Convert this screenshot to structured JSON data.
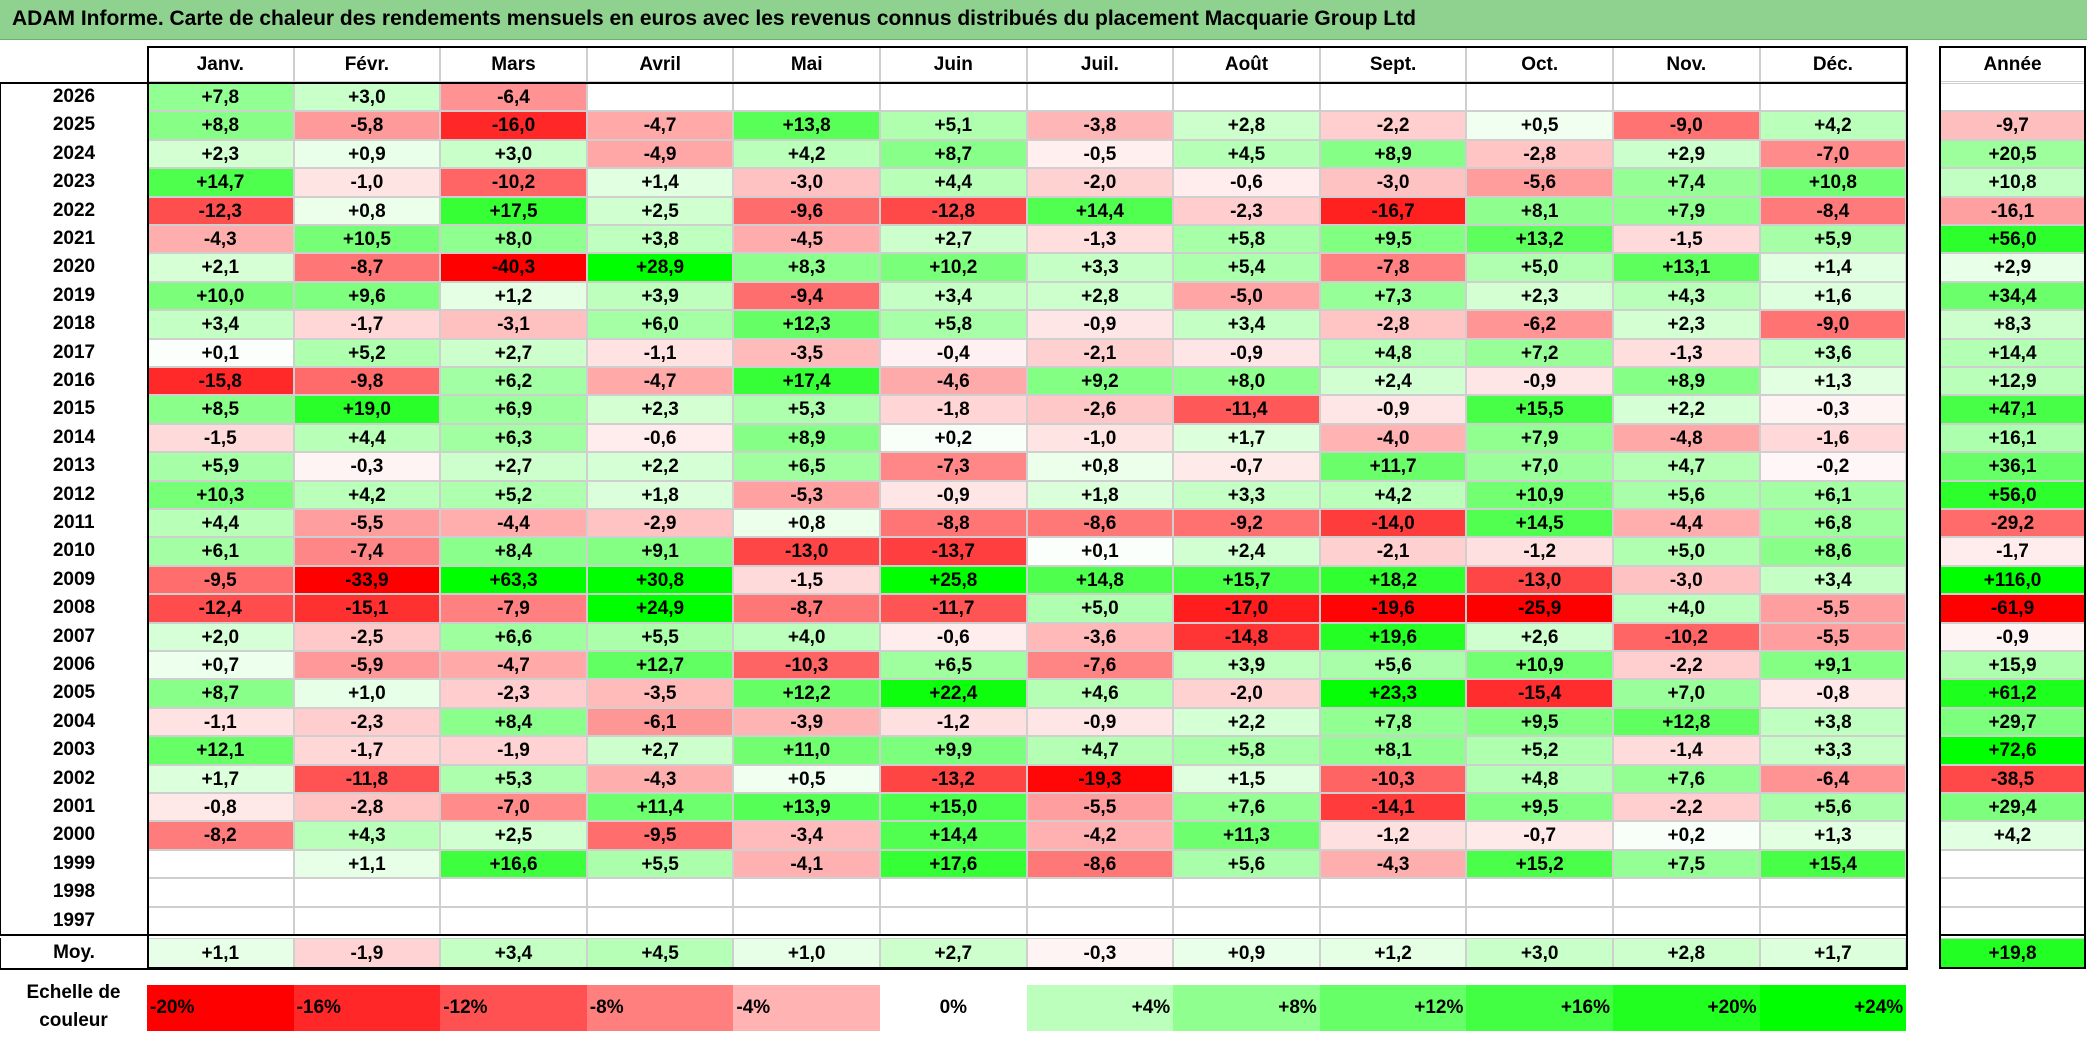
{
  "title": "ADAM Informe. Carte de chaleur des rendements mensuels en euros avec les revenus connus distribués du placement Macquarie Group Ltd",
  "chart_data": {
    "type": "heatmap",
    "title": "ADAM Informe. Carte de chaleur des rendements mensuels en euros avec les revenus connus distribués du placement Macquarie Group Ltd",
    "months": [
      "Janv.",
      "Févr.",
      "Mars",
      "Avril",
      "Mai",
      "Juin",
      "Juil.",
      "Août",
      "Sept.",
      "Oct.",
      "Nov.",
      "Déc."
    ],
    "year_header": "Année",
    "rows": [
      {
        "year": "2026",
        "values": [
          "+7,8",
          "+3,0",
          "-6,4",
          "",
          "",
          "",
          "",
          "",
          "",
          "",
          "",
          ""
        ],
        "annual": ""
      },
      {
        "year": "2025",
        "values": [
          "+8,8",
          "-5,8",
          "-16,0",
          "-4,7",
          "+13,8",
          "+5,1",
          "-3,8",
          "+2,8",
          "-2,2",
          "+0,5",
          "-9,0",
          "+4,2"
        ],
        "annual": "-9,7"
      },
      {
        "year": "2024",
        "values": [
          "+2,3",
          "+0,9",
          "+3,0",
          "-4,9",
          "+4,2",
          "+8,7",
          "-0,5",
          "+4,5",
          "+8,9",
          "-2,8",
          "+2,9",
          "-7,0"
        ],
        "annual": "+20,5"
      },
      {
        "year": "2023",
        "values": [
          "+14,7",
          "-1,0",
          "-10,2",
          "+1,4",
          "-3,0",
          "+4,4",
          "-2,0",
          "-0,6",
          "-3,0",
          "-5,6",
          "+7,4",
          "+10,8"
        ],
        "annual": "+10,8"
      },
      {
        "year": "2022",
        "values": [
          "-12,3",
          "+0,8",
          "+17,5",
          "+2,5",
          "-9,6",
          "-12,8",
          "+14,4",
          "-2,3",
          "-16,7",
          "+8,1",
          "+7,9",
          "-8,4"
        ],
        "annual": "-16,1"
      },
      {
        "year": "2021",
        "values": [
          "-4,3",
          "+10,5",
          "+8,0",
          "+3,8",
          "-4,5",
          "+2,7",
          "-1,3",
          "+5,8",
          "+9,5",
          "+13,2",
          "-1,5",
          "+5,9"
        ],
        "annual": "+56,0"
      },
      {
        "year": "2020",
        "values": [
          "+2,1",
          "-8,7",
          "-40,3",
          "+28,9",
          "+8,3",
          "+10,2",
          "+3,3",
          "+5,4",
          "-7,8",
          "+5,0",
          "+13,1",
          "+1,4"
        ],
        "annual": "+2,9"
      },
      {
        "year": "2019",
        "values": [
          "+10,0",
          "+9,6",
          "+1,2",
          "+3,9",
          "-9,4",
          "+3,4",
          "+2,8",
          "-5,0",
          "+7,3",
          "+2,3",
          "+4,3",
          "+1,6"
        ],
        "annual": "+34,4"
      },
      {
        "year": "2018",
        "values": [
          "+3,4",
          "-1,7",
          "-3,1",
          "+6,0",
          "+12,3",
          "+5,8",
          "-0,9",
          "+3,4",
          "-2,8",
          "-6,2",
          "+2,3",
          "-9,0"
        ],
        "annual": "+8,3"
      },
      {
        "year": "2017",
        "values": [
          "+0,1",
          "+5,2",
          "+2,7",
          "-1,1",
          "-3,5",
          "-0,4",
          "-2,1",
          "-0,9",
          "+4,8",
          "+7,2",
          "-1,3",
          "+3,6"
        ],
        "annual": "+14,4"
      },
      {
        "year": "2016",
        "values": [
          "-15,8",
          "-9,8",
          "+6,2",
          "-4,7",
          "+17,4",
          "-4,6",
          "+9,2",
          "+8,0",
          "+2,4",
          "-0,9",
          "+8,9",
          "+1,3"
        ],
        "annual": "+12,9"
      },
      {
        "year": "2015",
        "values": [
          "+8,5",
          "+19,0",
          "+6,9",
          "+2,3",
          "+5,3",
          "-1,8",
          "-2,6",
          "-11,4",
          "-0,9",
          "+15,5",
          "+2,2",
          "-0,3"
        ],
        "annual": "+47,1"
      },
      {
        "year": "2014",
        "values": [
          "-1,5",
          "+4,4",
          "+6,3",
          "-0,6",
          "+8,9",
          "+0,2",
          "-1,0",
          "+1,7",
          "-4,0",
          "+7,9",
          "-4,8",
          "-1,6"
        ],
        "annual": "+16,1"
      },
      {
        "year": "2013",
        "values": [
          "+5,9",
          "-0,3",
          "+2,7",
          "+2,2",
          "+6,5",
          "-7,3",
          "+0,8",
          "-0,7",
          "+11,7",
          "+7,0",
          "+4,7",
          "-0,2"
        ],
        "annual": "+36,1"
      },
      {
        "year": "2012",
        "values": [
          "+10,3",
          "+4,2",
          "+5,2",
          "+1,8",
          "-5,3",
          "-0,9",
          "+1,8",
          "+3,3",
          "+4,2",
          "+10,9",
          "+5,6",
          "+6,1"
        ],
        "annual": "+56,0"
      },
      {
        "year": "2011",
        "values": [
          "+4,4",
          "-5,5",
          "-4,4",
          "-2,9",
          "+0,8",
          "-8,8",
          "-8,6",
          "-9,2",
          "-14,0",
          "+14,5",
          "-4,4",
          "+6,8"
        ],
        "annual": "-29,2"
      },
      {
        "year": "2010",
        "values": [
          "+6,1",
          "-7,4",
          "+8,4",
          "+9,1",
          "-13,0",
          "-13,7",
          "+0,1",
          "+2,4",
          "-2,1",
          "-1,2",
          "+5,0",
          "+8,6"
        ],
        "annual": "-1,7"
      },
      {
        "year": "2009",
        "values": [
          "-9,5",
          "-33,9",
          "+63,3",
          "+30,8",
          "-1,5",
          "+25,8",
          "+14,8",
          "+15,7",
          "+18,2",
          "-13,0",
          "-3,0",
          "+3,4"
        ],
        "annual": "+116,0"
      },
      {
        "year": "2008",
        "values": [
          "-12,4",
          "-15,1",
          "-7,9",
          "+24,9",
          "-8,7",
          "-11,7",
          "+5,0",
          "-17,0",
          "-19,6",
          "-25,9",
          "+4,0",
          "-5,5"
        ],
        "annual": "-61,9"
      },
      {
        "year": "2007",
        "values": [
          "+2,0",
          "-2,5",
          "+6,6",
          "+5,5",
          "+4,0",
          "-0,6",
          "-3,6",
          "-14,8",
          "+19,6",
          "+2,6",
          "-10,2",
          "-5,5"
        ],
        "annual": "-0,9"
      },
      {
        "year": "2006",
        "values": [
          "+0,7",
          "-5,9",
          "-4,7",
          "+12,7",
          "-10,3",
          "+6,5",
          "-7,6",
          "+3,9",
          "+5,6",
          "+10,9",
          "-2,2",
          "+9,1"
        ],
        "annual": "+15,9"
      },
      {
        "year": "2005",
        "values": [
          "+8,7",
          "+1,0",
          "-2,3",
          "-3,5",
          "+12,2",
          "+22,4",
          "+4,6",
          "-2,0",
          "+23,3",
          "-15,4",
          "+7,0",
          "-0,8"
        ],
        "annual": "+61,2"
      },
      {
        "year": "2004",
        "values": [
          "-1,1",
          "-2,3",
          "+8,4",
          "-6,1",
          "-3,9",
          "-1,2",
          "-0,9",
          "+2,2",
          "+7,8",
          "+9,5",
          "+12,8",
          "+3,8"
        ],
        "annual": "+29,7"
      },
      {
        "year": "2003",
        "values": [
          "+12,1",
          "-1,7",
          "-1,9",
          "+2,7",
          "+11,0",
          "+9,9",
          "+4,7",
          "+5,8",
          "+8,1",
          "+5,2",
          "-1,4",
          "+3,3"
        ],
        "annual": "+72,6"
      },
      {
        "year": "2002",
        "values": [
          "+1,7",
          "-11,8",
          "+5,3",
          "-4,3",
          "+0,5",
          "-13,2",
          "-19,3",
          "+1,5",
          "-10,3",
          "+4,8",
          "+7,6",
          "-6,4"
        ],
        "annual": "-38,5"
      },
      {
        "year": "2001",
        "values": [
          "-0,8",
          "-2,8",
          "-7,0",
          "+11,4",
          "+13,9",
          "+15,0",
          "-5,5",
          "+7,6",
          "-14,1",
          "+9,5",
          "-2,2",
          "+5,6"
        ],
        "annual": "+29,4"
      },
      {
        "year": "2000",
        "values": [
          "-8,2",
          "+4,3",
          "+2,5",
          "-9,5",
          "-3,4",
          "+14,4",
          "-4,2",
          "+11,3",
          "-1,2",
          "-0,7",
          "+0,2",
          "+1,3"
        ],
        "annual": "+4,2"
      },
      {
        "year": "1999",
        "values": [
          "",
          "+1,1",
          "+16,6",
          "+5,5",
          "-4,1",
          "+17,6",
          "-8,6",
          "+5,6",
          "-4,3",
          "+15,2",
          "+7,5",
          "+15,4"
        ],
        "annual": ""
      },
      {
        "year": "1998",
        "values": [
          "",
          "",
          "",
          "",
          "",
          "",
          "",
          "",
          "",
          "",
          "",
          ""
        ],
        "annual": ""
      },
      {
        "year": "1997",
        "values": [
          "",
          "",
          "",
          "",
          "",
          "",
          "",
          "",
          "",
          "",
          "",
          ""
        ],
        "annual": ""
      }
    ],
    "average": {
      "label": "Moy.",
      "values": [
        "+1,1",
        "-1,9",
        "+3,4",
        "+4,5",
        "+1,0",
        "+2,7",
        "-0,3",
        "+0,9",
        "+1,2",
        "+3,0",
        "+2,8",
        "+1,7"
      ],
      "annual": "+19,8"
    },
    "scale": {
      "label_line1": "Echelle de",
      "label_line2": "couleur",
      "steps": [
        "-20%",
        "-16%",
        "-12%",
        "-8%",
        "-4%",
        "0%",
        "+4%",
        "+8%",
        "+12%",
        "+16%",
        "+20%",
        "+24%"
      ]
    },
    "colors": {
      "negative_max": "#ff0000",
      "neutral": "#ffffff",
      "positive_max": "#00ff00",
      "title_bg": "#8fd18f"
    }
  }
}
